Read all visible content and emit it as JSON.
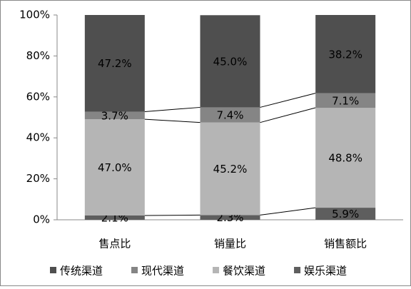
{
  "chart_data": {
    "type": "stacked-bar-100",
    "categories": [
      "售点比",
      "销量比",
      "销售额比"
    ],
    "series": [
      {
        "name": "传统渠道",
        "color": "#4f4f4f",
        "values": [
          47.2,
          45.0,
          38.2
        ],
        "value_labels": [
          "47.2%",
          "45.0%",
          "38.2%"
        ]
      },
      {
        "name": "现代渠道",
        "color": "#858585",
        "values": [
          3.7,
          7.4,
          7.1
        ],
        "value_labels": [
          "3.7%",
          "7.4%",
          "7.1%"
        ]
      },
      {
        "name": "餐饮渠道",
        "color": "#b5b5b5",
        "values": [
          47.0,
          45.2,
          48.8
        ],
        "value_labels": [
          "47.0%",
          "45.2%",
          "48.8%"
        ]
      },
      {
        "name": "娱乐渠道",
        "color": "#5e5e5e",
        "values": [
          2.1,
          2.3,
          5.9
        ],
        "value_labels": [
          "2.1%",
          "2.3%",
          "5.9%"
        ]
      }
    ],
    "ylim": [
      0,
      100
    ],
    "yticks": [
      {
        "value": 0,
        "label": "0%"
      },
      {
        "value": 20,
        "label": "20%"
      },
      {
        "value": 40,
        "label": "40%"
      },
      {
        "value": 60,
        "label": "60%"
      },
      {
        "value": 80,
        "label": "80%"
      },
      {
        "value": 100,
        "label": "100%"
      }
    ],
    "legend": "bottom"
  }
}
